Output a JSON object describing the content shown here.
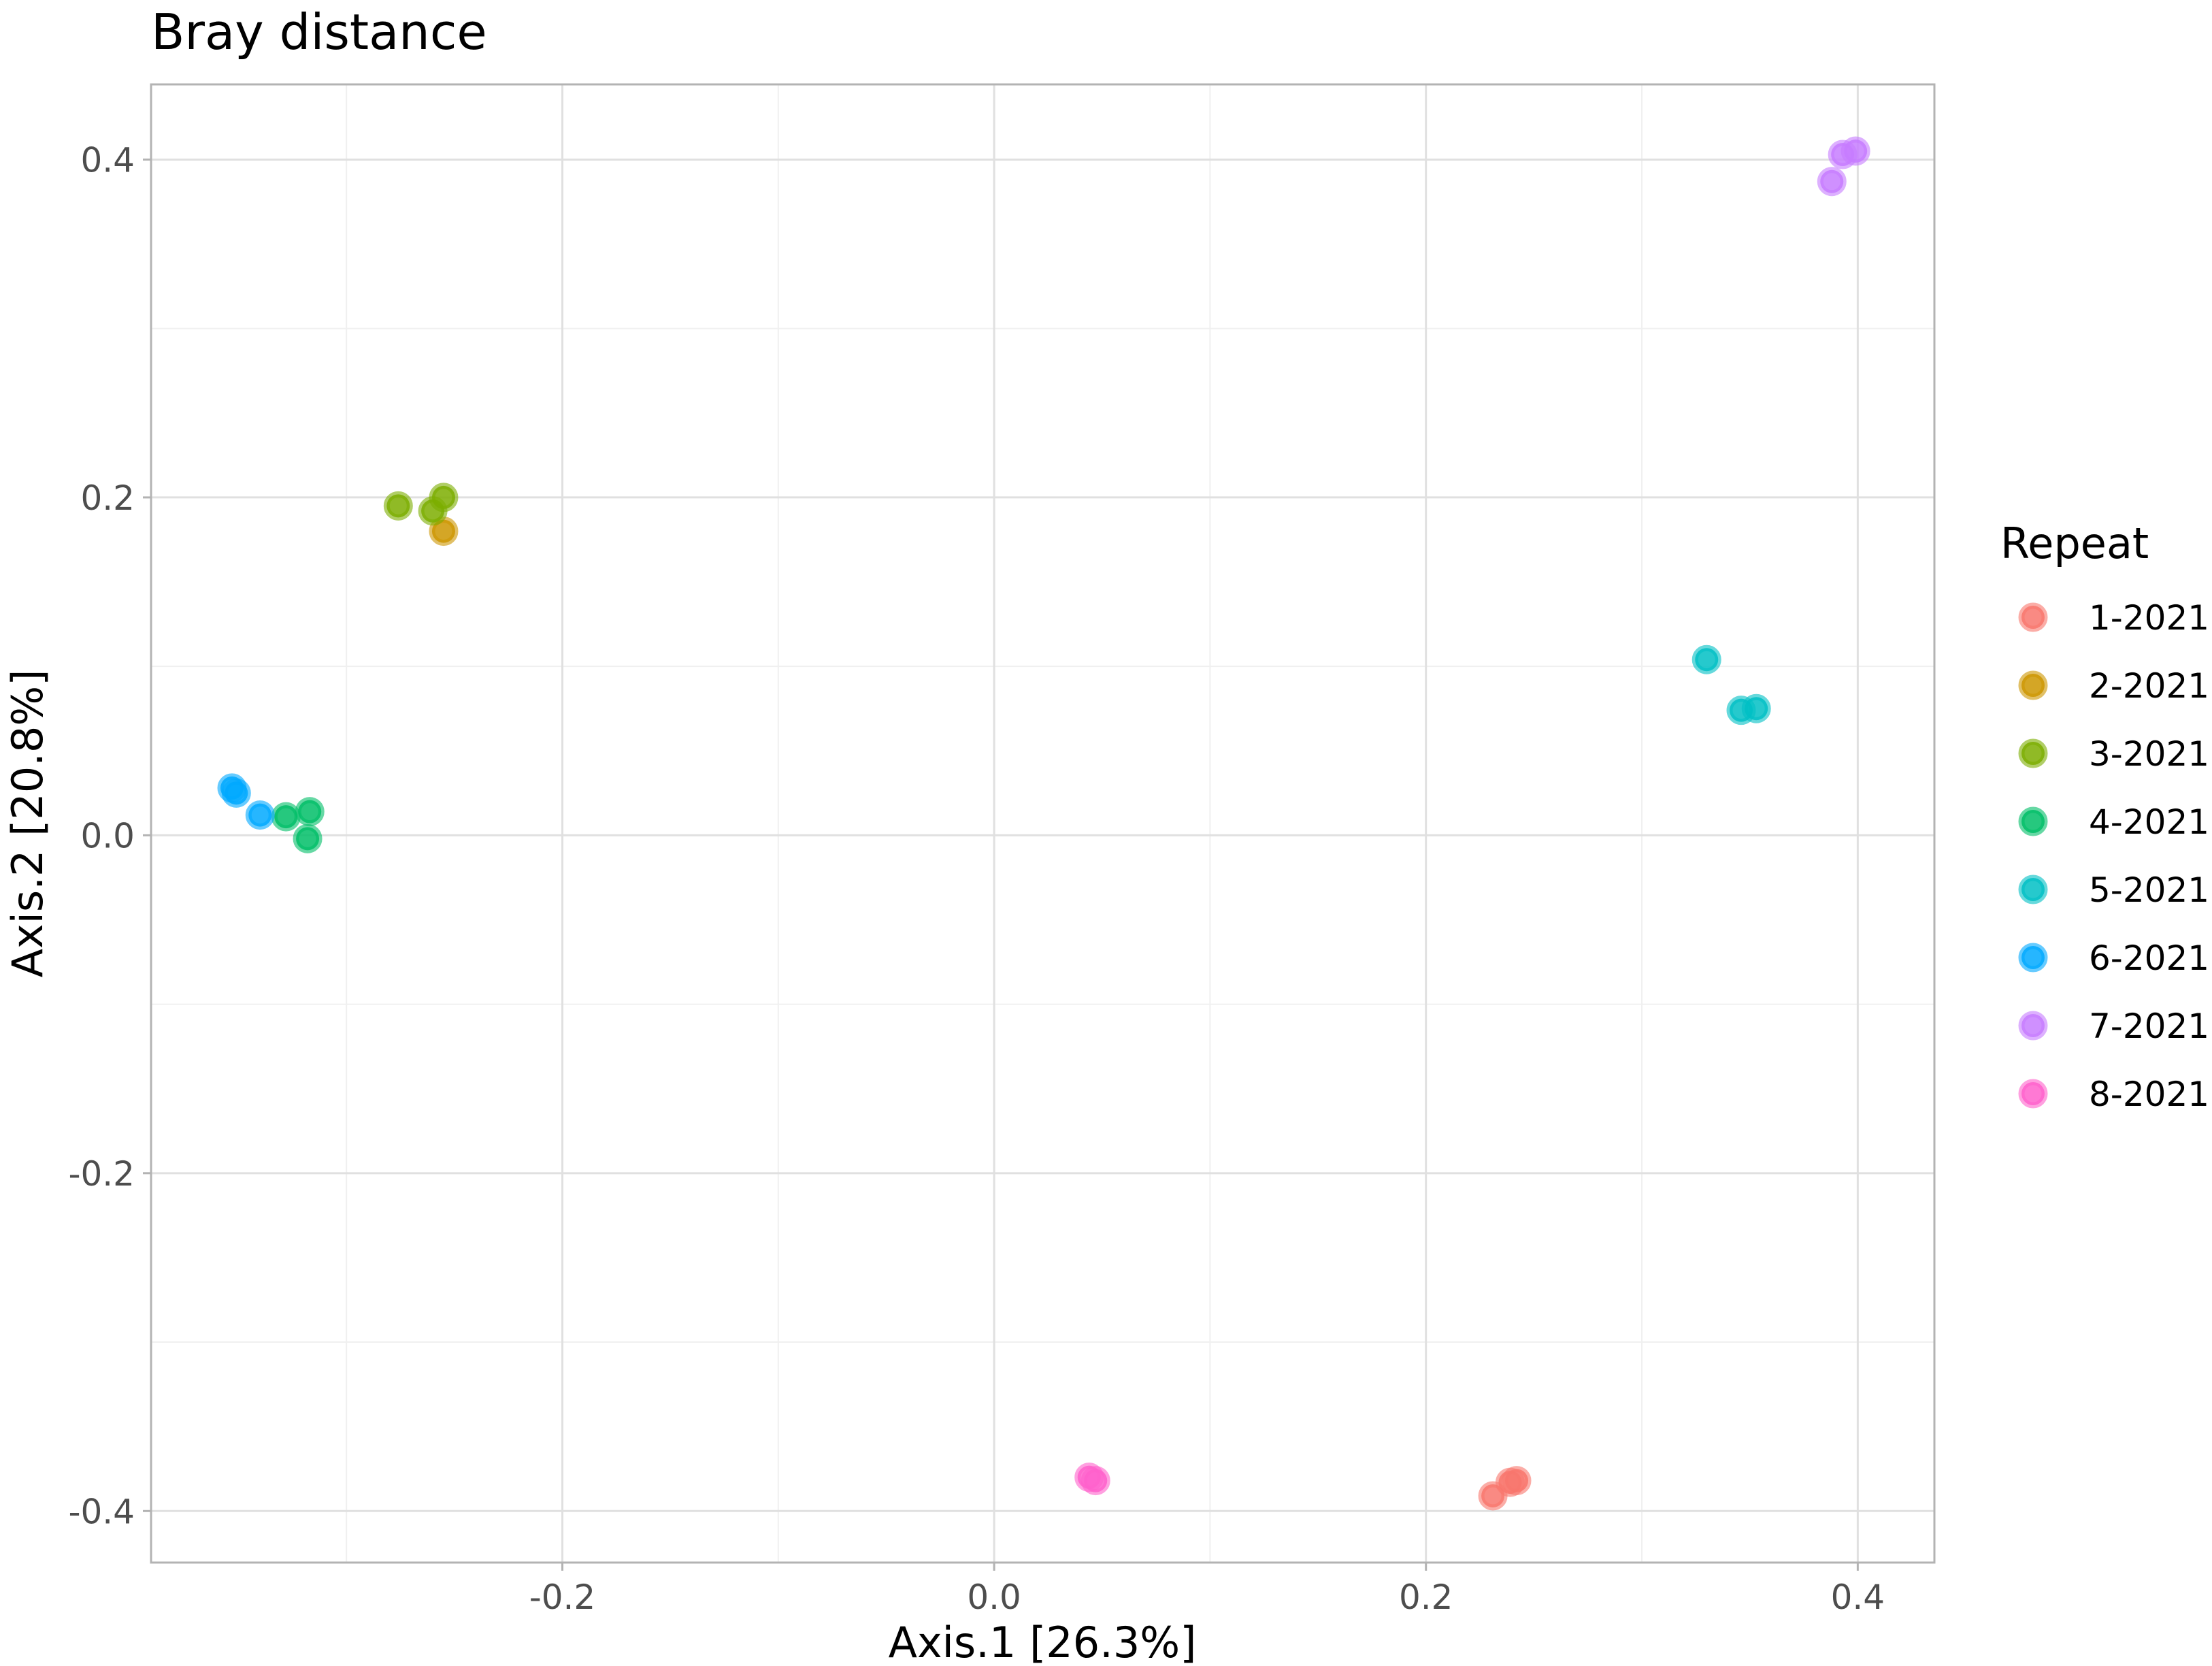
{
  "chart_data": {
    "type": "scatter",
    "title": "Bray distance",
    "xlabel": "Axis.1   [26.3%]",
    "ylabel": "Axis.2   [20.8%]",
    "xlim": [
      -0.3905,
      0.4355
    ],
    "ylim": [
      -0.4305,
      0.4445
    ],
    "x_ticks": [
      {
        "value": -0.2,
        "label": "-0.2"
      },
      {
        "value": 0.0,
        "label": "0.0"
      },
      {
        "value": 0.2,
        "label": "0.2"
      },
      {
        "value": 0.4,
        "label": "0.4"
      }
    ],
    "y_ticks": [
      {
        "value": -0.4,
        "label": "-0.4"
      },
      {
        "value": -0.2,
        "label": "-0.2"
      },
      {
        "value": 0.0,
        "label": "0.0"
      },
      {
        "value": 0.2,
        "label": "0.2"
      },
      {
        "value": 0.4,
        "label": "0.4"
      }
    ],
    "grid": true,
    "legend": {
      "title": "Repeat",
      "position": "right"
    },
    "series": [
      {
        "name": "1-2021",
        "color": "#F8766D",
        "points": [
          [
            0.231,
            -0.391
          ],
          [
            0.239,
            -0.383
          ],
          [
            0.242,
            -0.382
          ]
        ]
      },
      {
        "name": "2-2021",
        "color": "#CD9600",
        "points": [
          [
            -0.255,
            0.18
          ]
        ]
      },
      {
        "name": "3-2021",
        "color": "#7CAE00",
        "points": [
          [
            -0.276,
            0.195
          ],
          [
            -0.26,
            0.192
          ],
          [
            -0.255,
            0.2
          ]
        ]
      },
      {
        "name": "4-2021",
        "color": "#00BE67",
        "points": [
          [
            -0.328,
            0.011
          ],
          [
            -0.318,
            -0.002
          ],
          [
            -0.317,
            0.014
          ]
        ]
      },
      {
        "name": "5-2021",
        "color": "#00BFC4",
        "points": [
          [
            0.33,
            0.104
          ],
          [
            0.346,
            0.074
          ],
          [
            0.353,
            0.075
          ]
        ]
      },
      {
        "name": "6-2021",
        "color": "#00A9FF",
        "points": [
          [
            -0.353,
            0.028
          ],
          [
            -0.351,
            0.025
          ],
          [
            -0.34,
            0.012
          ]
        ]
      },
      {
        "name": "7-2021",
        "color": "#C77CFF",
        "points": [
          [
            0.388,
            0.387
          ],
          [
            0.393,
            0.403
          ],
          [
            0.399,
            0.405
          ]
        ]
      },
      {
        "name": "8-2021",
        "color": "#FF61CC",
        "points": [
          [
            0.044,
            -0.38
          ],
          [
            0.047,
            -0.382
          ]
        ]
      }
    ]
  }
}
